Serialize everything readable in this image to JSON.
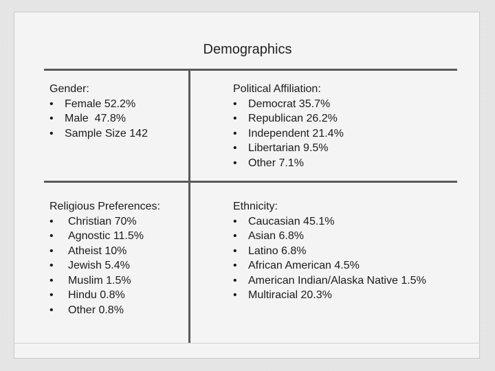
{
  "title": "Demographics",
  "sections": {
    "gender": {
      "heading": "Gender:",
      "items": [
        "Female 52.2%",
        "Male  47.8%",
        "Sample Size 142"
      ]
    },
    "political": {
      "heading": "Political Affiliation:",
      "items": [
        "Democrat 35.7%",
        "Republican 26.2%",
        "Independent 21.4%",
        "Libertarian 9.5%",
        "Other 7.1%"
      ]
    },
    "religious": {
      "heading": "Religious Preferences:",
      "items": [
        "Christian 70%",
        "Agnostic 11.5%",
        "Atheist 10%",
        "Jewish 5.4%",
        "Muslim 1.5%",
        "Hindu 0.8%",
        "Other 0.8%"
      ]
    },
    "ethnicity": {
      "heading": "Ethnicity:",
      "items": [
        "Caucasian 45.1%",
        "Asian 6.8%",
        "Latino 6.8%",
        "African American 4.5%",
        "American Indian/Alaska Native 1.5%",
        "Multiracial 20.3%"
      ]
    }
  },
  "bullet_char": "•"
}
